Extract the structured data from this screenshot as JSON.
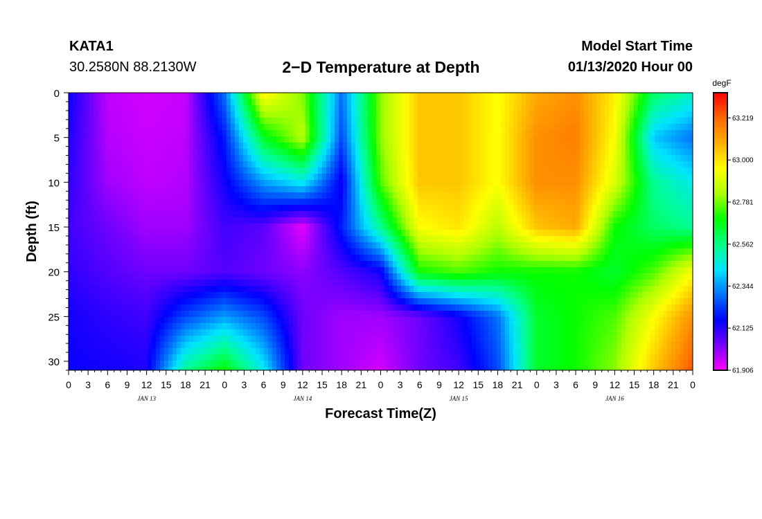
{
  "header": {
    "station": "KATA1",
    "coordinates": "30.2580N 88.2130W",
    "title": "2−D Temperature at Depth",
    "model_start_label": "Model Start Time",
    "model_start_value": "01/13/2020 Hour 00"
  },
  "chart_data": {
    "type": "heatmap",
    "title": "2−D Temperature at Depth",
    "xlabel": "Forecast Time(Z)",
    "ylabel": "Depth (ft)",
    "x_hours": [
      0,
      3,
      6,
      9,
      12,
      15,
      18,
      21,
      24,
      27,
      30,
      33,
      36,
      39,
      42,
      45,
      48,
      51,
      54,
      57,
      60,
      63,
      66,
      69,
      72,
      75,
      78,
      81,
      84,
      87,
      90,
      93,
      96
    ],
    "x_tick_labels": [
      "0",
      "3",
      "6",
      "9",
      "12",
      "15",
      "18",
      "21",
      "0",
      "3",
      "6",
      "9",
      "12",
      "15",
      "18",
      "21",
      "0",
      "3",
      "6",
      "9",
      "12",
      "15",
      "18",
      "21",
      "0",
      "3",
      "6",
      "9",
      "12",
      "15",
      "18",
      "21",
      "0"
    ],
    "date_labels": [
      {
        "label": "JAN 13",
        "hour": 12
      },
      {
        "label": "JAN 14",
        "hour": 36
      },
      {
        "label": "JAN 15",
        "hour": 60
      },
      {
        "label": "JAN 16",
        "hour": 84
      }
    ],
    "y_ticks": [
      0,
      5,
      10,
      15,
      20,
      25,
      30
    ],
    "ylim": [
      0,
      31
    ],
    "xlim": [
      0,
      96
    ],
    "colorbar": {
      "unit": "degF",
      "range": [
        61.906,
        63.35
      ],
      "tick_values": [
        63.219,
        63.0,
        62.781,
        62.562,
        62.344,
        62.125,
        61.906
      ],
      "tick_labels": [
        "63.219",
        "63.000",
        "62.781",
        "62.562",
        "62.344",
        "62.125",
        "61.906"
      ],
      "colors": [
        "#ff00ff",
        "#7a00ff",
        "#0000ff",
        "#0070ff",
        "#00e5ff",
        "#00ff88",
        "#00ff00",
        "#aaff00",
        "#ffff00",
        "#ffb000",
        "#ff6a00",
        "#ff0000"
      ]
    },
    "depths": [
      0,
      5,
      10,
      15,
      20,
      25,
      31
    ],
    "temperature_grid": [
      [
        62.16,
        61.97,
        61.95,
        61.96,
        62.3,
        62.98,
        62.79,
        62.3,
        62.8,
        63.05,
        63.05,
        62.95,
        63.1,
        63.15,
        62.98,
        62.6,
        62.5
      ],
      [
        62.14,
        61.98,
        61.96,
        61.97,
        62.2,
        62.66,
        62.85,
        62.25,
        62.8,
        63.05,
        63.05,
        62.95,
        63.15,
        63.18,
        62.95,
        62.4,
        62.3
      ],
      [
        62.12,
        62.0,
        61.97,
        61.98,
        62.15,
        62.35,
        62.45,
        62.15,
        62.75,
        63.05,
        63.05,
        62.95,
        63.15,
        63.15,
        62.9,
        62.55,
        62.45
      ],
      [
        62.1,
        62.05,
        62.0,
        62.0,
        62.1,
        62.07,
        61.93,
        62.2,
        62.55,
        62.95,
        63.0,
        62.85,
        63.05,
        63.1,
        62.7,
        62.6,
        62.55
      ],
      [
        62.12,
        62.08,
        62.05,
        62.05,
        62.08,
        62.05,
        62.02,
        62.08,
        62.15,
        62.7,
        62.75,
        62.7,
        62.7,
        62.7,
        62.65,
        62.75,
        62.95
      ],
      [
        62.15,
        62.12,
        62.1,
        62.25,
        62.35,
        62.25,
        62.05,
        62.0,
        62.0,
        62.05,
        62.15,
        62.3,
        62.65,
        62.7,
        62.75,
        62.95,
        63.15
      ],
      [
        62.16,
        62.15,
        62.14,
        62.55,
        62.7,
        62.45,
        62.05,
        62.0,
        61.95,
        62.05,
        62.1,
        62.25,
        62.65,
        62.7,
        62.8,
        63.05,
        63.25
      ]
    ]
  }
}
